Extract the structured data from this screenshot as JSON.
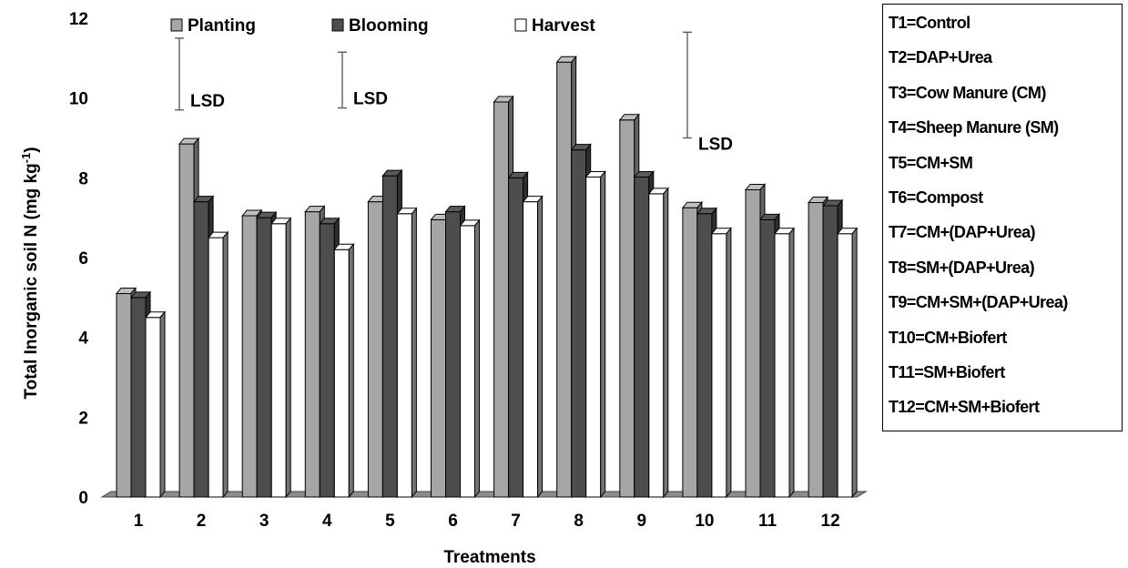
{
  "chart_data": {
    "type": "bar",
    "xlabel": "Treatments",
    "ylabel": "Total Inorganic soil N (mg kg",
    "ylabel_sup": "-1",
    "ylabel_close": ")",
    "ylim": [
      0,
      12
    ],
    "yticks": [
      "0",
      "2",
      "4",
      "6",
      "8",
      "10",
      "12"
    ],
    "categories": [
      "1",
      "2",
      "3",
      "4",
      "5",
      "6",
      "7",
      "8",
      "9",
      "10",
      "11",
      "12"
    ],
    "series": [
      {
        "name": "Planting",
        "color": "#a6a6a6",
        "values": [
          5.1,
          8.85,
          7.05,
          7.15,
          7.4,
          6.95,
          9.9,
          10.9,
          9.45,
          7.25,
          7.7,
          7.38
        ]
      },
      {
        "name": "Blooming",
        "color": "#4d4d4d",
        "values": [
          5.0,
          7.4,
          7.0,
          6.85,
          8.05,
          7.15,
          8.0,
          8.7,
          8.02,
          7.1,
          6.95,
          7.3
        ]
      },
      {
        "name": "Harvest",
        "color": "#ffffff",
        "values": [
          4.5,
          6.5,
          6.85,
          6.2,
          7.1,
          6.8,
          7.4,
          8.02,
          7.6,
          6.6,
          6.6,
          6.6
        ]
      }
    ],
    "lsd": [
      {
        "label": "LSD",
        "stage": "Planting",
        "low": 9.7,
        "high": 11.5
      },
      {
        "label": "LSD",
        "stage": "Blooming",
        "low": 9.75,
        "high": 11.15
      },
      {
        "label": "LSD",
        "stage": "Harvest",
        "low": 9.0,
        "high": 11.65
      }
    ],
    "grid": false,
    "legend_placement": "top",
    "style": "3d-clustered-bars"
  },
  "treatment_key": [
    "T1=Control",
    "T2=DAP+Urea",
    "T3=Cow Manure (CM)",
    "T4=Sheep Manure (SM)",
    "T5=CM+SM",
    "T6=Compost",
    "T7=CM+(DAP+Urea)",
    "T8=SM+(DAP+Urea)",
    "T9=CM+SM+(DAP+Urea)",
    "T10=CM+Biofert",
    "T11=SM+Biofert",
    "T12=CM+SM+Biofert"
  ]
}
